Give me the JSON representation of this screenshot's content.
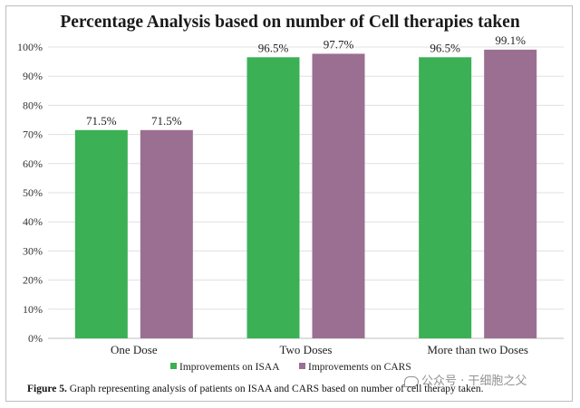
{
  "caption": {
    "label": "Figure 5.",
    "text": " Graph representing analysis of patients on ISAA and CARS based on number of cell therapy taken."
  },
  "watermark": {
    "text": "公众号 · 干细胞之父"
  },
  "chart_data": {
    "type": "bar",
    "title": "Percentage Analysis based on number of Cell therapies taken",
    "categories": [
      "One Dose",
      "Two Doses",
      "More than two Doses"
    ],
    "series": [
      {
        "name": "Improvements on ISAA",
        "values": [
          71.5,
          96.5,
          96.5
        ],
        "color": "#3bb055"
      },
      {
        "name": "Improvements on CARS",
        "values": [
          71.5,
          97.7,
          99.1
        ],
        "color": "#9a6f92"
      }
    ],
    "data_labels": [
      [
        "71.5%",
        "96.5%",
        "96.5%"
      ],
      [
        "71.5%",
        "97.7%",
        "99.1%"
      ]
    ],
    "ylim": [
      0,
      100
    ],
    "yticks": [
      0,
      10,
      20,
      30,
      40,
      50,
      60,
      70,
      80,
      90,
      100
    ],
    "ytick_labels": [
      "0%",
      "10%",
      "20%",
      "30%",
      "40%",
      "50%",
      "60%",
      "70%",
      "80%",
      "90%",
      "100%"
    ],
    "xlabel": "",
    "ylabel": "",
    "grid": true,
    "legend": "bottom-center"
  }
}
